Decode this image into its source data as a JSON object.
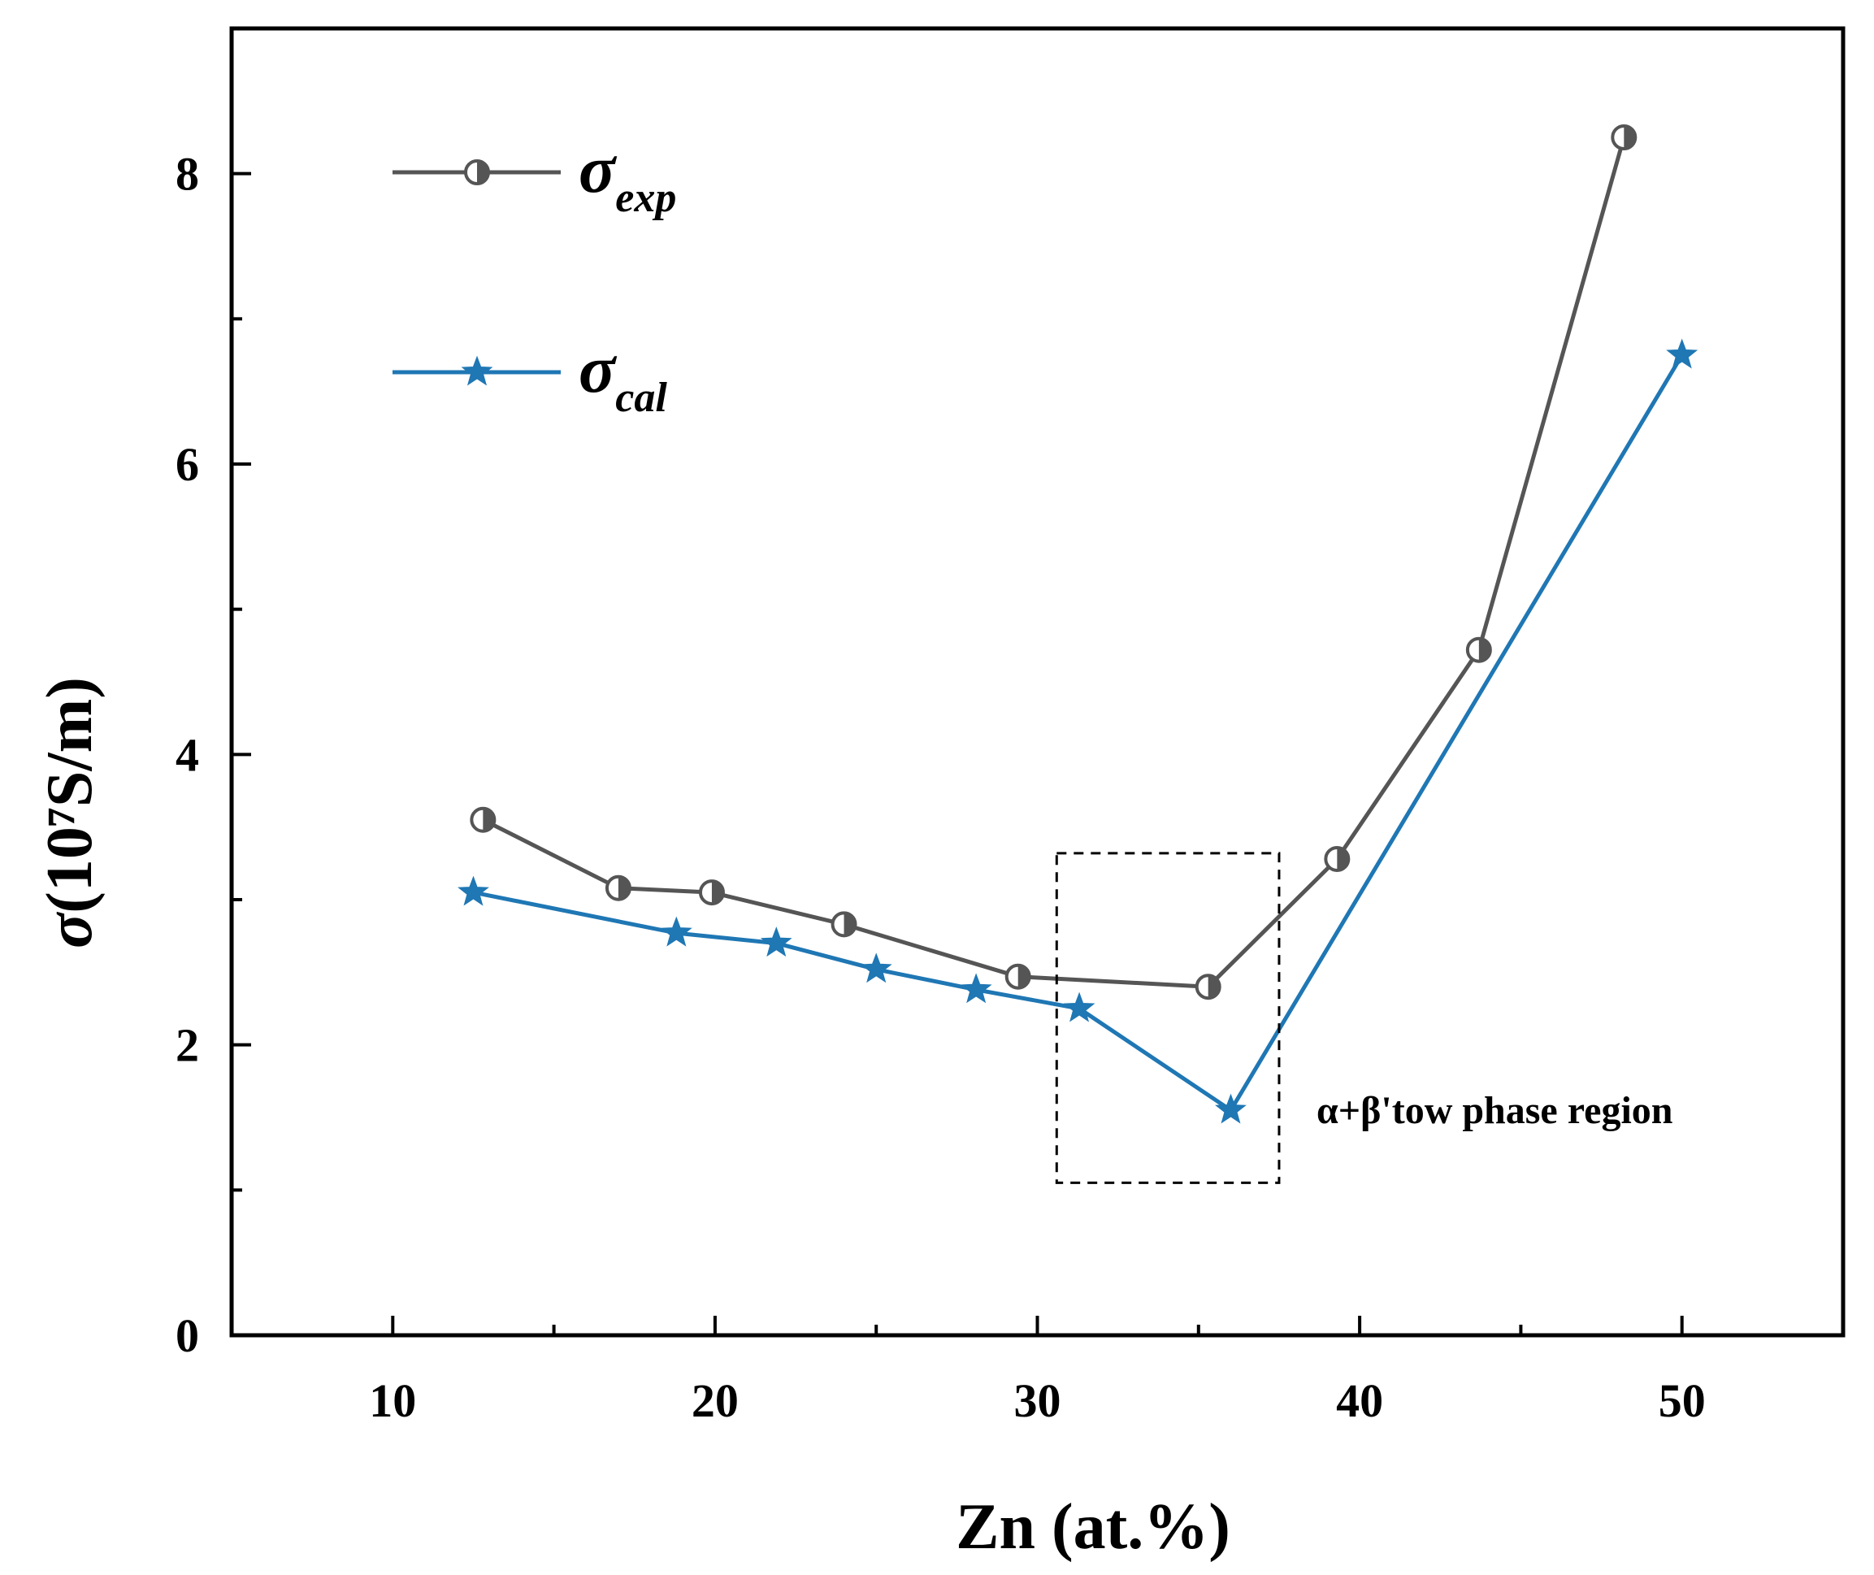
{
  "chart_data": {
    "type": "line",
    "title": "",
    "xlabel": "Zn (at.%)",
    "ylabel_symbol": "σ",
    "ylabel_unit": "(10⁷S/m)",
    "xlim": [
      5,
      55
    ],
    "ylim": [
      0,
      9
    ],
    "xticks": [
      10,
      20,
      30,
      40,
      50
    ],
    "yticks": [
      0,
      2,
      4,
      6,
      8
    ],
    "x_minor_ticks": [
      15,
      25,
      35,
      45
    ],
    "y_minor_ticks": [
      1,
      3,
      5,
      7
    ],
    "colors": {
      "exp": "#555555",
      "cal": "#1f77b4",
      "axis": "#000000"
    },
    "series": [
      {
        "key": "exp",
        "name": "σexp",
        "legend_symbol": "σ",
        "legend_subscript": "exp",
        "marker": "half-circle",
        "x": [
          12.8,
          17.0,
          19.9,
          24.0,
          29.4,
          35.3,
          39.3,
          43.7,
          48.2
        ],
        "y": [
          3.55,
          3.08,
          3.05,
          2.83,
          2.47,
          2.4,
          3.28,
          4.72,
          8.25
        ]
      },
      {
        "key": "cal",
        "name": "σcal",
        "legend_symbol": "σ",
        "legend_subscript": "cal",
        "marker": "star",
        "x": [
          12.5,
          18.8,
          21.9,
          25.0,
          28.1,
          31.3,
          36.0,
          50.0
        ],
        "y": [
          3.05,
          2.77,
          2.7,
          2.52,
          2.38,
          2.25,
          1.55,
          6.75
        ]
      }
    ],
    "annotation": {
      "text": "α+β'tow phase region",
      "box_x": [
        30.6,
        37.5
      ],
      "box_y": [
        1.05,
        3.32
      ]
    }
  }
}
